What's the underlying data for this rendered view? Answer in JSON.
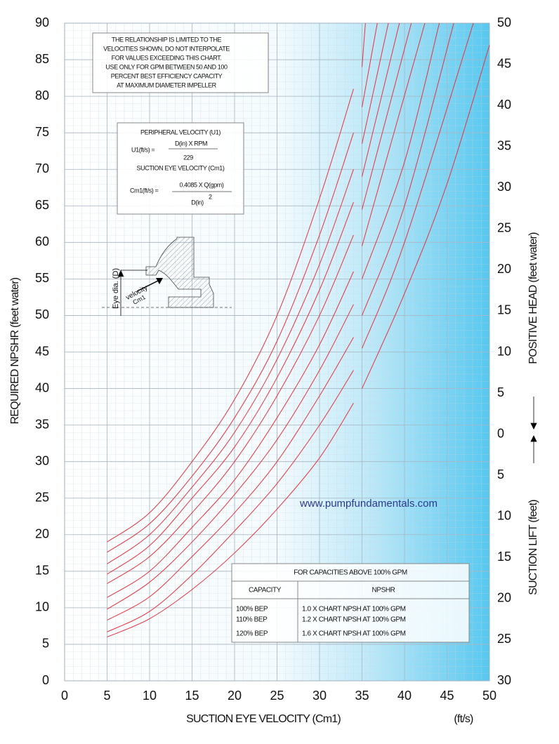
{
  "chart_data": {
    "type": "line",
    "xlabel": "SUCTION EYE VELOCITY (Cm1)",
    "xunit": "(ft/s)",
    "ylabel": "REQUIRED NPSHR (feet water)",
    "y2label_top": "POSITIVE HEAD (feet water)",
    "y2label_bottom": "SUCTION LIFT (feet)",
    "xlim": [
      0,
      50
    ],
    "xticks": [
      0,
      5,
      10,
      15,
      20,
      25,
      30,
      35,
      40,
      45,
      50
    ],
    "ylim": [
      0,
      90
    ],
    "yticks": [
      0,
      5,
      10,
      15,
      20,
      25,
      30,
      35,
      40,
      45,
      50,
      55,
      60,
      65,
      70,
      75,
      80,
      85,
      90
    ],
    "y2lim": [
      -30,
      50
    ],
    "y2ticks": [
      50,
      45,
      40,
      35,
      30,
      25,
      20,
      15,
      10,
      5,
      0,
      {
        "value": -5,
        "label": "5"
      },
      {
        "value": -10,
        "label": "10"
      },
      {
        "value": -15,
        "label": "15"
      },
      {
        "value": -20,
        "label": "20"
      },
      {
        "value": -25,
        "label": "25"
      },
      {
        "value": -30,
        "label": "30"
      }
    ],
    "grid": true,
    "series": [
      {
        "color": "#e8313c",
        "x": [
          5,
          10,
          15,
          20,
          25,
          30,
          34,
          null,
          35,
          35.4
        ],
        "values": [
          19,
          23,
          30,
          38.5,
          50,
          66,
          81,
          null,
          84,
          90
        ]
      },
      {
        "color": "#e8313c",
        "x": [
          5,
          10,
          15,
          20,
          25,
          30,
          34,
          null,
          35,
          36.8
        ],
        "values": [
          17.6,
          21.5,
          28,
          36,
          46.5,
          61,
          75,
          null,
          78.5,
          90
        ]
      },
      {
        "color": "#e8313c",
        "x": [
          5,
          10,
          15,
          20,
          25,
          30,
          34,
          null,
          35,
          38.1
        ],
        "values": [
          16,
          20,
          26.5,
          34,
          44,
          57,
          70,
          null,
          73.5,
          90
        ]
      },
      {
        "color": "#e8313c",
        "x": [
          5,
          10,
          15,
          20,
          25,
          30,
          34,
          null,
          35,
          39.4
        ],
        "values": [
          14.6,
          18.5,
          25,
          32,
          41.5,
          53.5,
          65.5,
          null,
          69,
          90
        ]
      },
      {
        "color": "#e8313c",
        "x": [
          5,
          10,
          15,
          20,
          25,
          30,
          34,
          null,
          35,
          40.8
        ],
        "values": [
          13.3,
          17,
          23,
          30,
          39,
          50,
          61,
          null,
          64.5,
          90
        ]
      },
      {
        "color": "#e8313c",
        "x": [
          5,
          10,
          15,
          20,
          25,
          30,
          34,
          null,
          35,
          42.4
        ],
        "values": [
          11.4,
          15,
          21,
          27.5,
          36,
          46,
          56,
          null,
          59.5,
          90
        ]
      },
      {
        "color": "#e8313c",
        "x": [
          5,
          10,
          15,
          20,
          25,
          30,
          34,
          null,
          35,
          40,
          44.1
        ],
        "values": [
          9.8,
          13.5,
          19,
          25.5,
          33,
          42.5,
          51.5,
          null,
          55,
          71,
          90
        ]
      },
      {
        "color": "#e8313c",
        "x": [
          5,
          10,
          15,
          20,
          25,
          30,
          34,
          null,
          35,
          40,
          45.8
        ],
        "values": [
          8.3,
          11.5,
          17,
          23,
          30,
          39,
          47,
          null,
          50,
          65,
          90
        ]
      },
      {
        "color": "#e8313c",
        "x": [
          5,
          10,
          15,
          20,
          25,
          30,
          34,
          null,
          35,
          40,
          48.1
        ],
        "values": [
          6.7,
          9.5,
          14.5,
          20.5,
          27,
          35,
          42.5,
          null,
          45.5,
          60,
          90
        ]
      },
      {
        "color": "#e8313c",
        "x": [
          5,
          10,
          15,
          20,
          25,
          30,
          34,
          null,
          35,
          40,
          45,
          50
        ],
        "values": [
          6,
          8.5,
          12.5,
          17.5,
          23.5,
          30.5,
          38,
          null,
          40,
          53,
          68,
          87
        ]
      }
    ],
    "note": [
      "THE RELATIONSHIP IS LIMITED TO THE",
      "VELOCITIES SHOWN, DO NOT INTERPOLATE",
      "FOR VALUES EXCEEDING THIS CHART.",
      "USE ONLY FOR GPM BETWEEN 50 AND 100",
      "PERCENT BEST EFFICIENCY CAPACITY",
      "AT MAXIMUM DIAMETER IMPELLER"
    ],
    "formula": {
      "u_title": "PERIPHERAL VELOCITY (U1)",
      "u_lhs": "U1(ft/s) =",
      "u_num": "D(in) X RPM",
      "u_den": "229",
      "c_title": "SUCTION EYE VELOCITY (Cm1)",
      "c_lhs": "Cm1(ft/s) =",
      "c_num": "0.4085 X Q(gpm)",
      "c_den": "D(in)",
      "c_exp": "2"
    },
    "diagram": {
      "eye": "Eye dia. (D)",
      "velocity": "velocity",
      "cm": "Cm1"
    },
    "website": "www.pumpfundamentals.com",
    "table": {
      "title": "FOR CAPACITIES ABOVE 100% GPM",
      "headers": [
        "CAPACITY",
        "NPSHR"
      ],
      "rows": [
        [
          "100% BEP",
          "1.0 X CHART NPSH AT 100% GPM"
        ],
        [
          "110% BEP",
          "1.2 X CHART NPSH AT 100% GPM"
        ],
        [
          "120% BEP",
          "1.6 X CHART NPSH AT 100% GPM"
        ]
      ]
    }
  }
}
